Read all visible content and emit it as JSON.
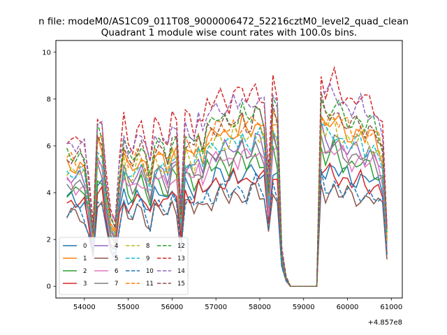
{
  "chart_data": {
    "type": "line",
    "suptitle": "n file: modeM0/AS1C09_011T08_9000006472_52216cztM0_level2_quad_clean",
    "title": "Quadrant 1 module wise count rates with 100.0s bins.",
    "xlabel": "",
    "ylabel": "",
    "x_offset_label": "+4.857e8",
    "xlim": [
      53350,
      61250
    ],
    "ylim": [
      -0.5,
      10.5
    ],
    "x_ticks": [
      54000,
      55000,
      56000,
      57000,
      58000,
      59000,
      60000,
      61000
    ],
    "x_tick_labels": [
      "54000",
      "55000",
      "56000",
      "57000",
      "58000",
      "59000",
      "60000",
      "61000"
    ],
    "y_ticks": [
      0,
      2,
      4,
      6,
      8,
      10
    ],
    "y_tick_labels": [
      "0",
      "2",
      "4",
      "6",
      "8",
      "10"
    ],
    "grid": false,
    "legend_position": "lower-left",
    "legend_columns": 4,
    "x": [
      53600,
      53700,
      53800,
      53900,
      54000,
      54100,
      54200,
      54300,
      54400,
      54500,
      54600,
      54700,
      54800,
      54900,
      55000,
      55100,
      55200,
      55300,
      55400,
      55500,
      55600,
      55700,
      55800,
      55900,
      56000,
      56100,
      56200,
      56300,
      56400,
      56500,
      56600,
      56700,
      56800,
      56900,
      57000,
      57100,
      57200,
      57300,
      57400,
      57500,
      57600,
      57700,
      57800,
      57900,
      58000,
      58100,
      58200,
      58300,
      58400,
      58500,
      58600,
      58700,
      58800,
      58900,
      59000,
      59100,
      59200,
      59300,
      59400,
      59500,
      59600,
      59700,
      59800,
      59900,
      60000,
      60100,
      60200,
      60300,
      60400,
      60500,
      60600,
      60700,
      60800,
      60900
    ],
    "base_profile": [
      0.74,
      0.74,
      0.73,
      0.74,
      0.72,
      0.52,
      0.3,
      0.86,
      0.84,
      0.55,
      0.38,
      0.33,
      0.62,
      0.82,
      0.72,
      0.7,
      0.78,
      0.8,
      0.72,
      0.62,
      0.8,
      0.8,
      0.77,
      0.72,
      0.84,
      0.82,
      0.4,
      0.85,
      0.83,
      0.78,
      0.87,
      0.8,
      0.9,
      0.9,
      0.93,
      0.95,
      0.94,
      0.91,
      0.96,
      0.94,
      0.98,
      0.93,
      0.95,
      1.0,
      0.97,
      0.93,
      0.55,
      1.02,
      0.95,
      0.2,
      0.05,
      0.0,
      0.0,
      0.0,
      0.0,
      0.0,
      0.0,
      0.0,
      1.05,
      0.97,
      1.0,
      1.02,
      0.98,
      0.95,
      0.94,
      0.92,
      0.93,
      0.94,
      0.9,
      0.92,
      0.9,
      0.86,
      0.8,
      0.3
    ],
    "series": [
      {
        "name": "0",
        "color": "#1f77b4",
        "dash": "solid",
        "level": 5.0
      },
      {
        "name": "1",
        "color": "#ff7f0e",
        "dash": "solid",
        "level": 7.0
      },
      {
        "name": "2",
        "color": "#2ca02c",
        "dash": "solid",
        "level": 5.6
      },
      {
        "name": "3",
        "color": "#d62728",
        "dash": "solid",
        "level": 4.8
      },
      {
        "name": "4",
        "color": "#9467bd",
        "dash": "solid",
        "level": 6.2
      },
      {
        "name": "5",
        "color": "#8c564b",
        "dash": "solid",
        "level": 4.1
      },
      {
        "name": "6",
        "color": "#e377c2",
        "dash": "solid",
        "level": 5.8
      },
      {
        "name": "7",
        "color": "#7f7f7f",
        "dash": "solid",
        "level": 6.0
      },
      {
        "name": "8",
        "color": "#bcbd22",
        "dash": "dashed",
        "level": 6.7
      },
      {
        "name": "9",
        "color": "#17becf",
        "dash": "dashed",
        "level": 6.5
      },
      {
        "name": "10",
        "color": "#1f77b4",
        "dash": "dashed",
        "level": 4.3
      },
      {
        "name": "11",
        "color": "#ff7f0e",
        "dash": "dashed",
        "level": 7.2
      },
      {
        "name": "12",
        "color": "#2ca02c",
        "dash": "dashed",
        "level": 7.6
      },
      {
        "name": "13",
        "color": "#d62728",
        "dash": "dashed",
        "level": 8.6
      },
      {
        "name": "14",
        "color": "#9467bd",
        "dash": "dashed",
        "level": 8.2
      },
      {
        "name": "15",
        "color": "#8c564b",
        "dash": "dashed",
        "level": 7.4
      }
    ]
  }
}
